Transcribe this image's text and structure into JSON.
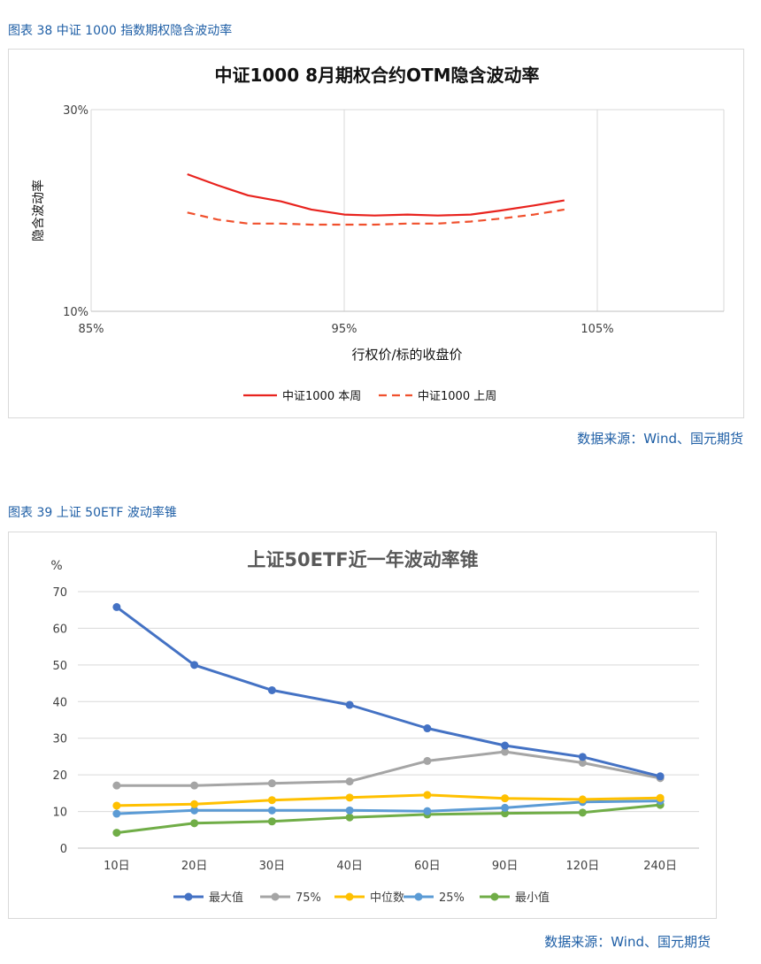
{
  "figure1": {
    "caption": "图表 38 中证 1000 指数期权隐含波动率",
    "source": "数据来源：Wind、国元期货",
    "chart_data": {
      "type": "line",
      "title": "中证1000  8月期权合约OTM隐含波动率",
      "xlabel": "行权价/标的收盘价",
      "ylabel": "隐含波动率",
      "x_ticks": [
        "85%",
        "95%",
        "105%"
      ],
      "y_ticks": [
        "30%",
        "10%"
      ],
      "xlim": [
        0.85,
        1.1
      ],
      "ylim": [
        0.1,
        0.3
      ],
      "legend_position": "bottom",
      "grid": "vertical",
      "series": [
        {
          "name": "中证1000  本周",
          "color": "#e8231e",
          "dash": "solid",
          "x": [
            0.888,
            0.9,
            0.912,
            0.925,
            0.937,
            0.95,
            0.962,
            0.975,
            0.987,
            1.0,
            1.012,
            1.025,
            1.037
          ],
          "y": [
            0.236,
            0.225,
            0.215,
            0.209,
            0.201,
            0.196,
            0.195,
            0.196,
            0.195,
            0.196,
            0.2,
            0.205,
            0.21
          ]
        },
        {
          "name": "中证1000  上周",
          "color": "#f0502d",
          "dash": "dashed",
          "x": [
            0.888,
            0.9,
            0.912,
            0.925,
            0.937,
            0.95,
            0.962,
            0.975,
            0.987,
            1.0,
            1.012,
            1.025,
            1.037
          ],
          "y": [
            0.198,
            0.191,
            0.187,
            0.187,
            0.186,
            0.186,
            0.186,
            0.187,
            0.187,
            0.189,
            0.192,
            0.196,
            0.201
          ]
        }
      ]
    }
  },
  "figure2": {
    "caption": "图表 39 上证 50ETF 波动率锥",
    "source": "数据来源：Wind、国元期货",
    "chart_data": {
      "type": "line",
      "title": "上证50ETF近一年波动率锥",
      "ylabel": "%",
      "categories": [
        "10日",
        "20日",
        "30日",
        "40日",
        "60日",
        "90日",
        "120日",
        "240日"
      ],
      "y_ticks": [
        "0",
        "10",
        "20",
        "30",
        "40",
        "50",
        "60",
        "70"
      ],
      "ylim": [
        0,
        70
      ],
      "legend_position": "bottom",
      "grid": "horizontal",
      "series": [
        {
          "name": "最大值",
          "color": "#4472c4",
          "values": [
            65.8,
            50.0,
            43.1,
            39.1,
            32.7,
            28.0,
            24.9,
            19.6
          ]
        },
        {
          "name": "75%",
          "color": "#a5a5a5",
          "values": [
            17.1,
            17.1,
            17.7,
            18.2,
            23.8,
            26.3,
            23.3,
            19.1
          ]
        },
        {
          "name": "中位数",
          "color": "#ffc000",
          "values": [
            11.6,
            12.0,
            13.1,
            13.8,
            14.5,
            13.6,
            13.3,
            13.7
          ]
        },
        {
          "name": "25%",
          "color": "#5b9bd5",
          "values": [
            9.4,
            10.3,
            10.3,
            10.3,
            10.1,
            11.0,
            12.6,
            12.9
          ]
        },
        {
          "name": "最小值",
          "color": "#70ad47",
          "values": [
            4.2,
            6.8,
            7.3,
            8.4,
            9.2,
            9.5,
            9.7,
            11.8
          ]
        }
      ]
    }
  }
}
